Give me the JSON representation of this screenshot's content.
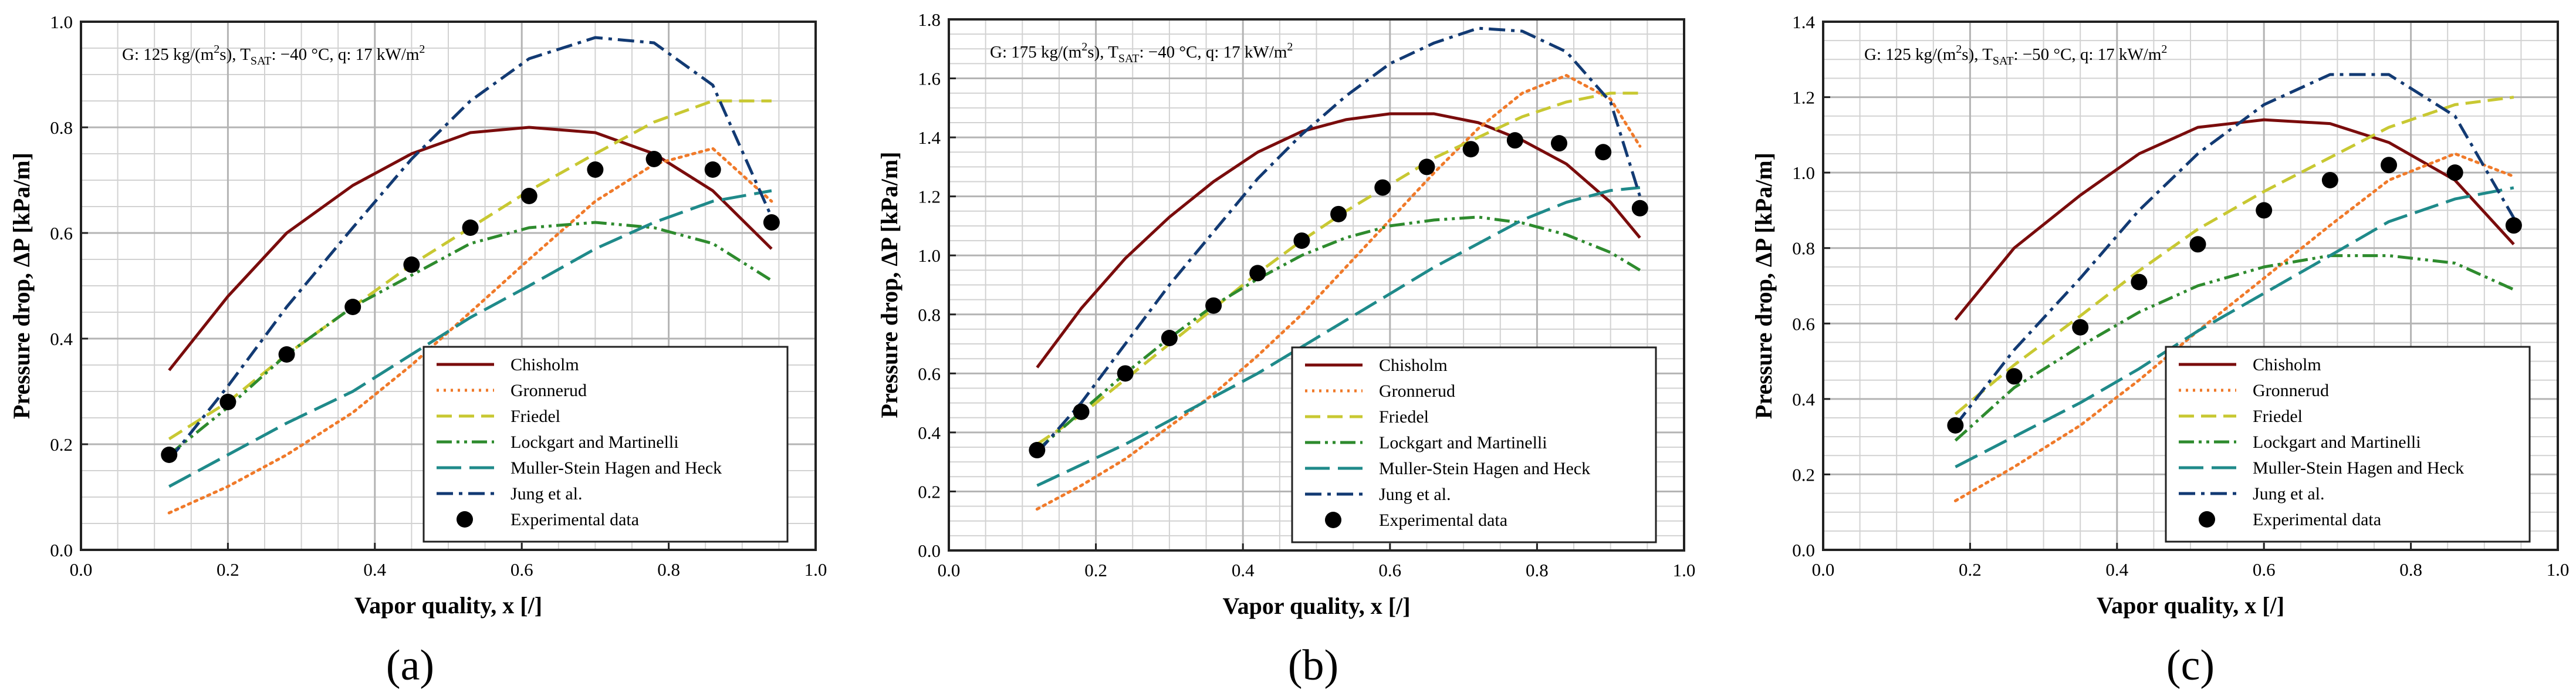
{
  "figure": {
    "legend_entries": [
      "Chisholm",
      "Gronnerud",
      "Friedel",
      "Lockgart and Martinelli",
      "Muller-Stein Hagen and Heck",
      "Jung et al.",
      "Experimental data"
    ],
    "series_styles": [
      {
        "name": "Chisholm",
        "color": "#7a0c0c",
        "dash": "solid"
      },
      {
        "name": "Gronnerud",
        "color": "#f07a2a",
        "dash": "dotted"
      },
      {
        "name": "Friedel",
        "color": "#c8c832",
        "dash": "dashed"
      },
      {
        "name": "Lockgart and Martinelli",
        "color": "#2e8b2e",
        "dash": "dashdotdot"
      },
      {
        "name": "Muller-Stein Hagen and Heck",
        "color": "#1f8a8a",
        "dash": "longdash"
      },
      {
        "name": "Jung et al.",
        "color": "#123a73",
        "dash": "dashdot"
      },
      {
        "name": "Experimental data",
        "color": "#000000",
        "dash": "marker"
      }
    ]
  },
  "chart_data": [
    {
      "type": "line",
      "panel_label": "(a)",
      "title": "",
      "annotation": {
        "prefix": "G: 125 kg/(m",
        "sup1": "2",
        "mid1": "s), T",
        "sub1": "SAT",
        "mid2": ": −40 °C, q: 17 kW/m",
        "sup2": "2"
      },
      "xlabel": "Vapor quality, x [/]",
      "ylabel": "Pressure drop, ΔP [kPa/m]",
      "xlim": [
        0,
        1.0
      ],
      "ylim": [
        0,
        1.0
      ],
      "xticks": [
        "0.0",
        "0.2",
        "0.4",
        "0.6",
        "0.8",
        "1.0"
      ],
      "yticks": [
        "0.0",
        "0.2",
        "0.4",
        "0.6",
        "0.8",
        "1.0"
      ],
      "grid": true,
      "legend_position": "bottom-right",
      "series": [
        {
          "name": "Chisholm",
          "x": [
            0.12,
            0.2,
            0.28,
            0.37,
            0.45,
            0.53,
            0.61,
            0.7,
            0.78,
            0.86,
            0.94
          ],
          "y": [
            0.34,
            0.48,
            0.6,
            0.69,
            0.75,
            0.79,
            0.8,
            0.79,
            0.75,
            0.68,
            0.57
          ]
        },
        {
          "name": "Gronnerud",
          "x": [
            0.12,
            0.2,
            0.28,
            0.37,
            0.45,
            0.53,
            0.61,
            0.7,
            0.78,
            0.86,
            0.94
          ],
          "y": [
            0.07,
            0.12,
            0.18,
            0.26,
            0.35,
            0.45,
            0.55,
            0.66,
            0.73,
            0.76,
            0.66
          ]
        },
        {
          "name": "Friedel",
          "x": [
            0.12,
            0.2,
            0.28,
            0.37,
            0.45,
            0.53,
            0.61,
            0.7,
            0.78,
            0.86,
            0.94
          ],
          "y": [
            0.21,
            0.28,
            0.37,
            0.46,
            0.54,
            0.61,
            0.68,
            0.75,
            0.81,
            0.85,
            0.85
          ]
        },
        {
          "name": "Lockgart and Martinelli",
          "x": [
            0.12,
            0.2,
            0.28,
            0.37,
            0.45,
            0.53,
            0.61,
            0.7,
            0.78,
            0.86,
            0.94
          ],
          "y": [
            0.18,
            0.27,
            0.37,
            0.46,
            0.52,
            0.58,
            0.61,
            0.62,
            0.61,
            0.58,
            0.51
          ]
        },
        {
          "name": "Muller-Stein Hagen and Heck",
          "x": [
            0.12,
            0.2,
            0.28,
            0.37,
            0.45,
            0.53,
            0.61,
            0.7,
            0.78,
            0.86,
            0.94
          ],
          "y": [
            0.12,
            0.18,
            0.24,
            0.3,
            0.37,
            0.44,
            0.5,
            0.57,
            0.62,
            0.66,
            0.68
          ]
        },
        {
          "name": "Jung et al.",
          "x": [
            0.12,
            0.2,
            0.28,
            0.37,
            0.45,
            0.53,
            0.61,
            0.7,
            0.78,
            0.86,
            0.94
          ],
          "y": [
            0.17,
            0.31,
            0.46,
            0.61,
            0.74,
            0.85,
            0.93,
            0.97,
            0.96,
            0.88,
            0.63
          ]
        },
        {
          "name": "Experimental data",
          "x": [
            0.12,
            0.2,
            0.28,
            0.37,
            0.45,
            0.53,
            0.61,
            0.7,
            0.78,
            0.86,
            0.94
          ],
          "y": [
            0.18,
            0.28,
            0.37,
            0.46,
            0.54,
            0.61,
            0.67,
            0.72,
            0.74,
            0.72,
            0.62
          ]
        }
      ]
    },
    {
      "type": "line",
      "panel_label": "(b)",
      "title": "",
      "annotation": {
        "prefix": "G: 175 kg/(m",
        "sup1": "2",
        "mid1": "s), T",
        "sub1": "SAT",
        "mid2": ": −40 °C, q: 17 kW/m",
        "sup2": "2"
      },
      "xlabel": "Vapor quality, x [/]",
      "ylabel": "Pressure drop, ΔP [kPa/m]",
      "xlim": [
        0,
        1.0
      ],
      "ylim": [
        0,
        1.8
      ],
      "xticks": [
        "0.0",
        "0.2",
        "0.4",
        "0.6",
        "0.8",
        "1.0"
      ],
      "yticks": [
        "0.0",
        "0.2",
        "0.4",
        "0.6",
        "0.8",
        "1.0",
        "1.2",
        "1.4",
        "1.6",
        "1.8"
      ],
      "grid": true,
      "legend_position": "bottom-right",
      "series": [
        {
          "name": "Chisholm",
          "x": [
            0.12,
            0.18,
            0.24,
            0.3,
            0.36,
            0.42,
            0.48,
            0.54,
            0.6,
            0.66,
            0.72,
            0.78,
            0.84,
            0.9,
            0.94
          ],
          "y": [
            0.62,
            0.82,
            0.99,
            1.13,
            1.25,
            1.35,
            1.42,
            1.46,
            1.48,
            1.48,
            1.45,
            1.39,
            1.31,
            1.18,
            1.06
          ]
        },
        {
          "name": "Gronnerud",
          "x": [
            0.12,
            0.18,
            0.24,
            0.3,
            0.36,
            0.42,
            0.48,
            0.54,
            0.6,
            0.66,
            0.72,
            0.78,
            0.84,
            0.9,
            0.94
          ],
          "y": [
            0.14,
            0.22,
            0.31,
            0.42,
            0.53,
            0.66,
            0.8,
            0.96,
            1.12,
            1.28,
            1.43,
            1.55,
            1.61,
            1.53,
            1.37
          ]
        },
        {
          "name": "Friedel",
          "x": [
            0.12,
            0.18,
            0.24,
            0.3,
            0.36,
            0.42,
            0.48,
            0.54,
            0.6,
            0.66,
            0.72,
            0.78,
            0.84,
            0.9,
            0.94
          ],
          "y": [
            0.36,
            0.46,
            0.58,
            0.7,
            0.82,
            0.94,
            1.05,
            1.15,
            1.24,
            1.33,
            1.4,
            1.47,
            1.52,
            1.55,
            1.55
          ]
        },
        {
          "name": "Lockgart and Martinelli",
          "x": [
            0.12,
            0.18,
            0.24,
            0.3,
            0.36,
            0.42,
            0.48,
            0.54,
            0.6,
            0.66,
            0.72,
            0.78,
            0.84,
            0.9,
            0.94
          ],
          "y": [
            0.34,
            0.47,
            0.6,
            0.72,
            0.83,
            0.92,
            1.0,
            1.06,
            1.1,
            1.12,
            1.13,
            1.11,
            1.07,
            1.01,
            0.95
          ]
        },
        {
          "name": "Muller-Stein Hagen and Heck",
          "x": [
            0.12,
            0.18,
            0.24,
            0.3,
            0.36,
            0.42,
            0.48,
            0.54,
            0.6,
            0.66,
            0.72,
            0.78,
            0.84,
            0.9,
            0.94
          ],
          "y": [
            0.22,
            0.29,
            0.36,
            0.44,
            0.52,
            0.6,
            0.69,
            0.78,
            0.87,
            0.96,
            1.04,
            1.12,
            1.18,
            1.22,
            1.23
          ]
        },
        {
          "name": "Jung et al.",
          "x": [
            0.12,
            0.18,
            0.24,
            0.3,
            0.36,
            0.42,
            0.48,
            0.54,
            0.6,
            0.66,
            0.72,
            0.78,
            0.84,
            0.9,
            0.94
          ],
          "y": [
            0.33,
            0.5,
            0.7,
            0.9,
            1.08,
            1.26,
            1.41,
            1.54,
            1.65,
            1.72,
            1.77,
            1.76,
            1.69,
            1.52,
            1.2
          ]
        },
        {
          "name": "Experimental data",
          "x": [
            0.12,
            0.18,
            0.24,
            0.3,
            0.36,
            0.42,
            0.48,
            0.53,
            0.59,
            0.65,
            0.71,
            0.77,
            0.83,
            0.89,
            0.94
          ],
          "y": [
            0.34,
            0.47,
            0.6,
            0.72,
            0.83,
            0.94,
            1.05,
            1.14,
            1.23,
            1.3,
            1.36,
            1.39,
            1.38,
            1.35,
            1.16
          ]
        }
      ]
    },
    {
      "type": "line",
      "panel_label": "(c)",
      "title": "",
      "annotation": {
        "prefix": "G: 125 kg/(m",
        "sup1": "2",
        "mid1": "s), T",
        "sub1": "SAT",
        "mid2": ": −50 °C, q: 17 kW/m",
        "sup2": "2"
      },
      "xlabel": "Vapor quality, x [/]",
      "ylabel": "Pressure drop, ΔP [kPa/m]",
      "xlim": [
        0,
        1.0
      ],
      "ylim": [
        0,
        1.4
      ],
      "xticks": [
        "0.0",
        "0.2",
        "0.4",
        "0.6",
        "0.8",
        "1.0"
      ],
      "yticks": [
        "0.0",
        "0.2",
        "0.4",
        "0.6",
        "0.8",
        "1.0",
        "1.2",
        "1.4"
      ],
      "grid": true,
      "legend_position": "bottom-right",
      "series": [
        {
          "name": "Chisholm",
          "x": [
            0.18,
            0.26,
            0.35,
            0.43,
            0.51,
            0.6,
            0.69,
            0.77,
            0.86,
            0.94
          ],
          "y": [
            0.61,
            0.8,
            0.94,
            1.05,
            1.12,
            1.14,
            1.13,
            1.08,
            0.98,
            0.81
          ]
        },
        {
          "name": "Gronnerud",
          "x": [
            0.18,
            0.26,
            0.35,
            0.43,
            0.51,
            0.6,
            0.69,
            0.77,
            0.86,
            0.94
          ],
          "y": [
            0.13,
            0.22,
            0.33,
            0.45,
            0.58,
            0.72,
            0.86,
            0.98,
            1.05,
            0.99
          ]
        },
        {
          "name": "Friedel",
          "x": [
            0.18,
            0.26,
            0.35,
            0.43,
            0.51,
            0.6,
            0.69,
            0.77,
            0.86,
            0.94
          ],
          "y": [
            0.36,
            0.49,
            0.62,
            0.74,
            0.85,
            0.95,
            1.04,
            1.12,
            1.18,
            1.2
          ]
        },
        {
          "name": "Lockgart and Martinelli",
          "x": [
            0.18,
            0.26,
            0.35,
            0.43,
            0.51,
            0.6,
            0.69,
            0.77,
            0.86,
            0.94
          ],
          "y": [
            0.29,
            0.43,
            0.54,
            0.63,
            0.7,
            0.75,
            0.78,
            0.78,
            0.76,
            0.69
          ]
        },
        {
          "name": "Muller-Stein Hagen and Heck",
          "x": [
            0.18,
            0.26,
            0.35,
            0.43,
            0.51,
            0.6,
            0.69,
            0.77,
            0.86,
            0.94
          ],
          "y": [
            0.22,
            0.3,
            0.39,
            0.48,
            0.58,
            0.68,
            0.78,
            0.87,
            0.93,
            0.96
          ]
        },
        {
          "name": "Jung et al.",
          "x": [
            0.18,
            0.26,
            0.35,
            0.43,
            0.51,
            0.6,
            0.69,
            0.77,
            0.86,
            0.94
          ],
          "y": [
            0.33,
            0.53,
            0.72,
            0.9,
            1.05,
            1.18,
            1.26,
            1.26,
            1.15,
            0.88
          ]
        },
        {
          "name": "Experimental data",
          "x": [
            0.18,
            0.26,
            0.35,
            0.43,
            0.51,
            0.6,
            0.69,
            0.77,
            0.86,
            0.94
          ],
          "y": [
            0.33,
            0.46,
            0.59,
            0.71,
            0.81,
            0.9,
            0.98,
            1.02,
            1.0,
            0.86
          ]
        }
      ]
    }
  ]
}
